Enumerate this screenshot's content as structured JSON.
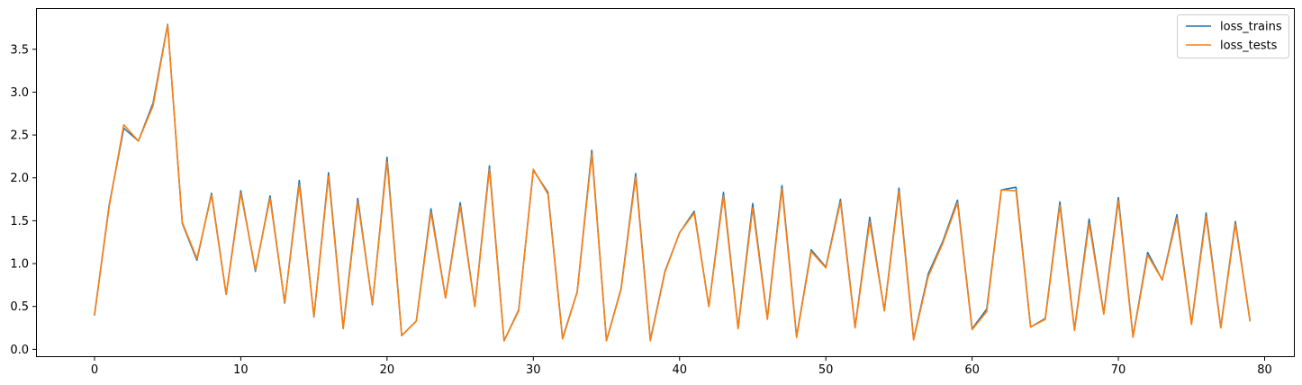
{
  "chart_data": {
    "type": "line",
    "title": "",
    "xlabel": "",
    "ylabel": "",
    "xlim": [
      -4,
      82
    ],
    "ylim": [
      -0.08,
      3.98
    ],
    "xticks": [
      0,
      10,
      20,
      30,
      40,
      50,
      60,
      70,
      80
    ],
    "yticks": [
      0.0,
      0.5,
      1.0,
      1.5,
      2.0,
      2.5,
      3.0,
      3.5
    ],
    "xtick_labels": [
      "0",
      "10",
      "20",
      "30",
      "40",
      "50",
      "60",
      "70",
      "80"
    ],
    "ytick_labels": [
      "0.0",
      "0.5",
      "1.0",
      "1.5",
      "2.0",
      "2.5",
      "3.0",
      "3.5"
    ],
    "grid": false,
    "legend_position": "top-right",
    "x": [
      0,
      1,
      2,
      3,
      4,
      5,
      6,
      7,
      8,
      9,
      10,
      11,
      12,
      13,
      14,
      15,
      16,
      17,
      18,
      19,
      20,
      21,
      22,
      23,
      24,
      25,
      26,
      27,
      28,
      29,
      30,
      31,
      32,
      33,
      34,
      35,
      36,
      37,
      38,
      39,
      40,
      41,
      42,
      43,
      44,
      45,
      46,
      47,
      48,
      49,
      50,
      51,
      52,
      53,
      54,
      55,
      56,
      57,
      58,
      59,
      60,
      61,
      62,
      63,
      64,
      65,
      66,
      67,
      68,
      69,
      70,
      71,
      72,
      73,
      74,
      75,
      76,
      77,
      78,
      79
    ],
    "series": [
      {
        "name": "loss_trains",
        "color": "#1f77b4",
        "values": [
          0.4,
          1.68,
          2.58,
          2.43,
          2.87,
          3.79,
          1.47,
          1.04,
          1.82,
          0.64,
          1.85,
          0.91,
          1.79,
          0.54,
          1.97,
          0.38,
          2.06,
          0.25,
          1.76,
          0.52,
          2.24,
          0.16,
          0.33,
          1.64,
          0.6,
          1.71,
          0.5,
          2.14,
          0.1,
          0.46,
          2.09,
          1.83,
          0.13,
          0.67,
          2.32,
          0.1,
          0.71,
          2.05,
          0.11,
          0.91,
          1.36,
          1.61,
          0.5,
          1.83,
          0.25,
          1.7,
          0.36,
          1.91,
          0.15,
          1.16,
          0.96,
          1.75,
          0.26,
          1.54,
          0.45,
          1.88,
          0.12,
          0.88,
          1.26,
          1.74,
          0.24,
          0.47,
          1.86,
          1.89,
          0.26,
          0.36,
          1.72,
          0.23,
          1.52,
          0.42,
          1.77,
          0.15,
          1.13,
          0.81,
          1.57,
          0.3,
          1.59,
          0.26,
          1.49,
          0.33
        ]
      },
      {
        "name": "loss_tests",
        "color": "#ff7f0e",
        "values": [
          0.41,
          1.66,
          2.62,
          2.43,
          2.84,
          3.78,
          1.48,
          1.06,
          1.8,
          0.64,
          1.82,
          0.93,
          1.76,
          0.55,
          1.92,
          0.39,
          2.02,
          0.24,
          1.72,
          0.53,
          2.19,
          0.16,
          0.33,
          1.6,
          0.6,
          1.67,
          0.5,
          2.1,
          0.1,
          0.45,
          2.1,
          1.81,
          0.12,
          0.67,
          2.28,
          0.1,
          0.7,
          2.01,
          0.1,
          0.9,
          1.36,
          1.59,
          0.5,
          1.79,
          0.24,
          1.65,
          0.35,
          1.87,
          0.14,
          1.14,
          0.95,
          1.72,
          0.25,
          1.49,
          0.45,
          1.84,
          0.11,
          0.85,
          1.24,
          1.71,
          0.23,
          0.44,
          1.86,
          1.85,
          0.26,
          0.35,
          1.68,
          0.22,
          1.47,
          0.41,
          1.73,
          0.14,
          1.1,
          0.81,
          1.53,
          0.29,
          1.55,
          0.25,
          1.46,
          0.33
        ]
      }
    ]
  }
}
